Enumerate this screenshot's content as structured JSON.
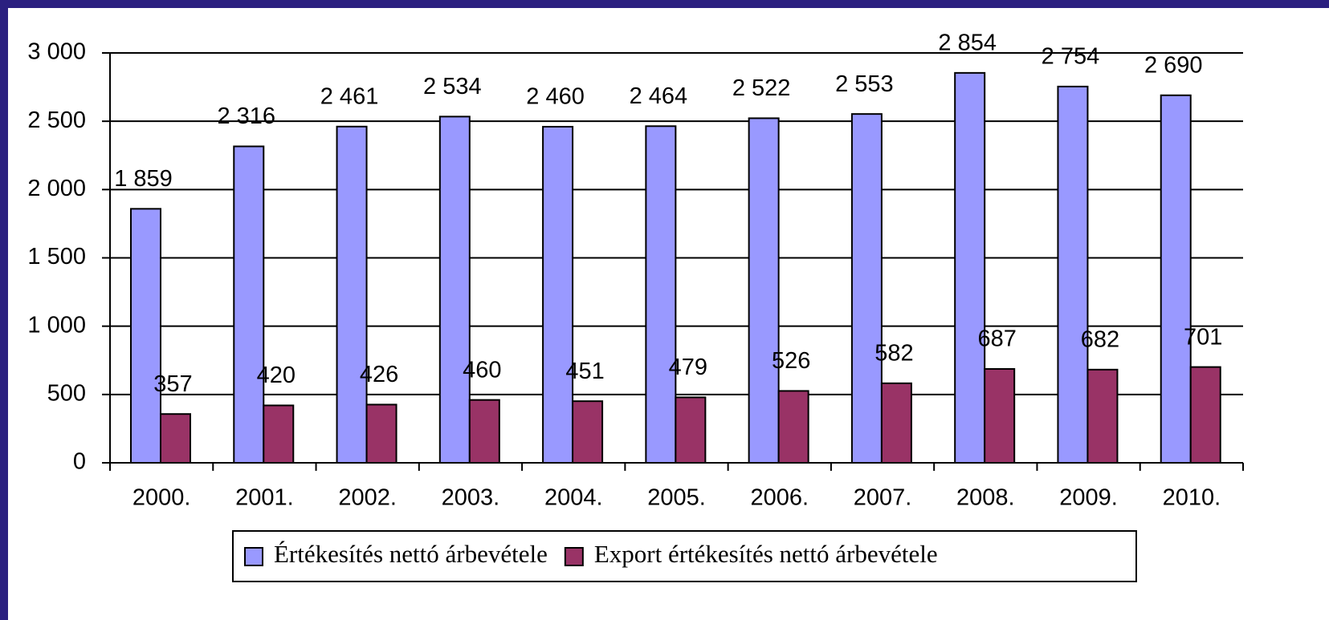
{
  "chart_data": {
    "type": "bar",
    "categories": [
      "2000.",
      "2001.",
      "2002.",
      "2003.",
      "2004.",
      "2005.",
      "2006.",
      "2007.",
      "2008.",
      "2009.",
      "2010."
    ],
    "series": [
      {
        "name": "Értékesítés nettó árbevétele",
        "color": "#9999ff",
        "values": [
          1859,
          2316,
          2461,
          2534,
          2460,
          2464,
          2522,
          2553,
          2854,
          2754,
          2690
        ],
        "value_labels": [
          "1 859",
          "2 316",
          "2 461",
          "2 534",
          "2 460",
          "2 464",
          "2 522",
          "2 553",
          "2 854",
          "2 754",
          "2 690"
        ]
      },
      {
        "name": "Export értékesítés nettó árbevétele",
        "color": "#993366",
        "values": [
          357,
          420,
          426,
          460,
          451,
          479,
          526,
          582,
          687,
          682,
          701
        ],
        "value_labels": [
          "357",
          "420",
          "426",
          "460",
          "451",
          "479",
          "526",
          "582",
          "687",
          "682",
          "701"
        ]
      }
    ],
    "ylim": [
      0,
      3000
    ],
    "yticks": [
      0,
      500,
      {
        "value": 1000,
        "label": "1 000"
      },
      {
        "value": 1500,
        "label": "1 500"
      },
      {
        "value": 2000,
        "label": "2 000"
      },
      {
        "value": 2500,
        "label": "2 500"
      },
      {
        "value": 3000,
        "label": "3 000"
      }
    ],
    "grid": true,
    "legend": "bottom"
  }
}
